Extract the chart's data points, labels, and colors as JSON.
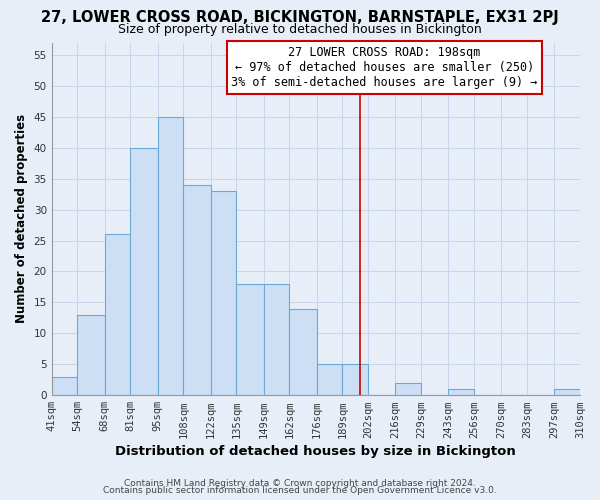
{
  "title1": "27, LOWER CROSS ROAD, BICKINGTON, BARNSTAPLE, EX31 2PJ",
  "title2": "Size of property relative to detached houses in Bickington",
  "xlabel": "Distribution of detached houses by size in Bickington",
  "ylabel": "Number of detached properties",
  "bin_labels": [
    "41sqm",
    "54sqm",
    "68sqm",
    "81sqm",
    "95sqm",
    "108sqm",
    "122sqm",
    "135sqm",
    "149sqm",
    "162sqm",
    "176sqm",
    "189sqm",
    "202sqm",
    "216sqm",
    "229sqm",
    "243sqm",
    "256sqm",
    "270sqm",
    "283sqm",
    "297sqm",
    "310sqm"
  ],
  "bin_edges": [
    41,
    54,
    68,
    81,
    95,
    108,
    122,
    135,
    149,
    162,
    176,
    189,
    202,
    216,
    229,
    243,
    256,
    270,
    283,
    297,
    310
  ],
  "counts": [
    3,
    13,
    26,
    40,
    45,
    34,
    33,
    18,
    18,
    14,
    5,
    5,
    0,
    2,
    0,
    1,
    0,
    0,
    0,
    1,
    0
  ],
  "bar_color": "#ccdff5",
  "bar_edge_color": "#6aaad4",
  "grid_color": "#c8d4e8",
  "vline_x": 198,
  "vline_color": "#cc0000",
  "annotation_line1": "27 LOWER CROSS ROAD: 198sqm",
  "annotation_line2": "← 97% of detached houses are smaller (250)",
  "annotation_line3": "3% of semi-detached houses are larger (9) →",
  "footer1": "Contains HM Land Registry data © Crown copyright and database right 2024.",
  "footer2": "Contains public sector information licensed under the Open Government Licence v3.0.",
  "bg_color": "#e8eef8",
  "plot_bg_color": "#e8eef8",
  "ylim": [
    0,
    57
  ],
  "yticks": [
    0,
    5,
    10,
    15,
    20,
    25,
    30,
    35,
    40,
    45,
    50,
    55
  ],
  "title1_fontsize": 10.5,
  "title2_fontsize": 9,
  "xlabel_fontsize": 9.5,
  "ylabel_fontsize": 8.5,
  "tick_fontsize": 7.5,
  "ann_fontsize": 8.5,
  "footer_fontsize": 6.5
}
